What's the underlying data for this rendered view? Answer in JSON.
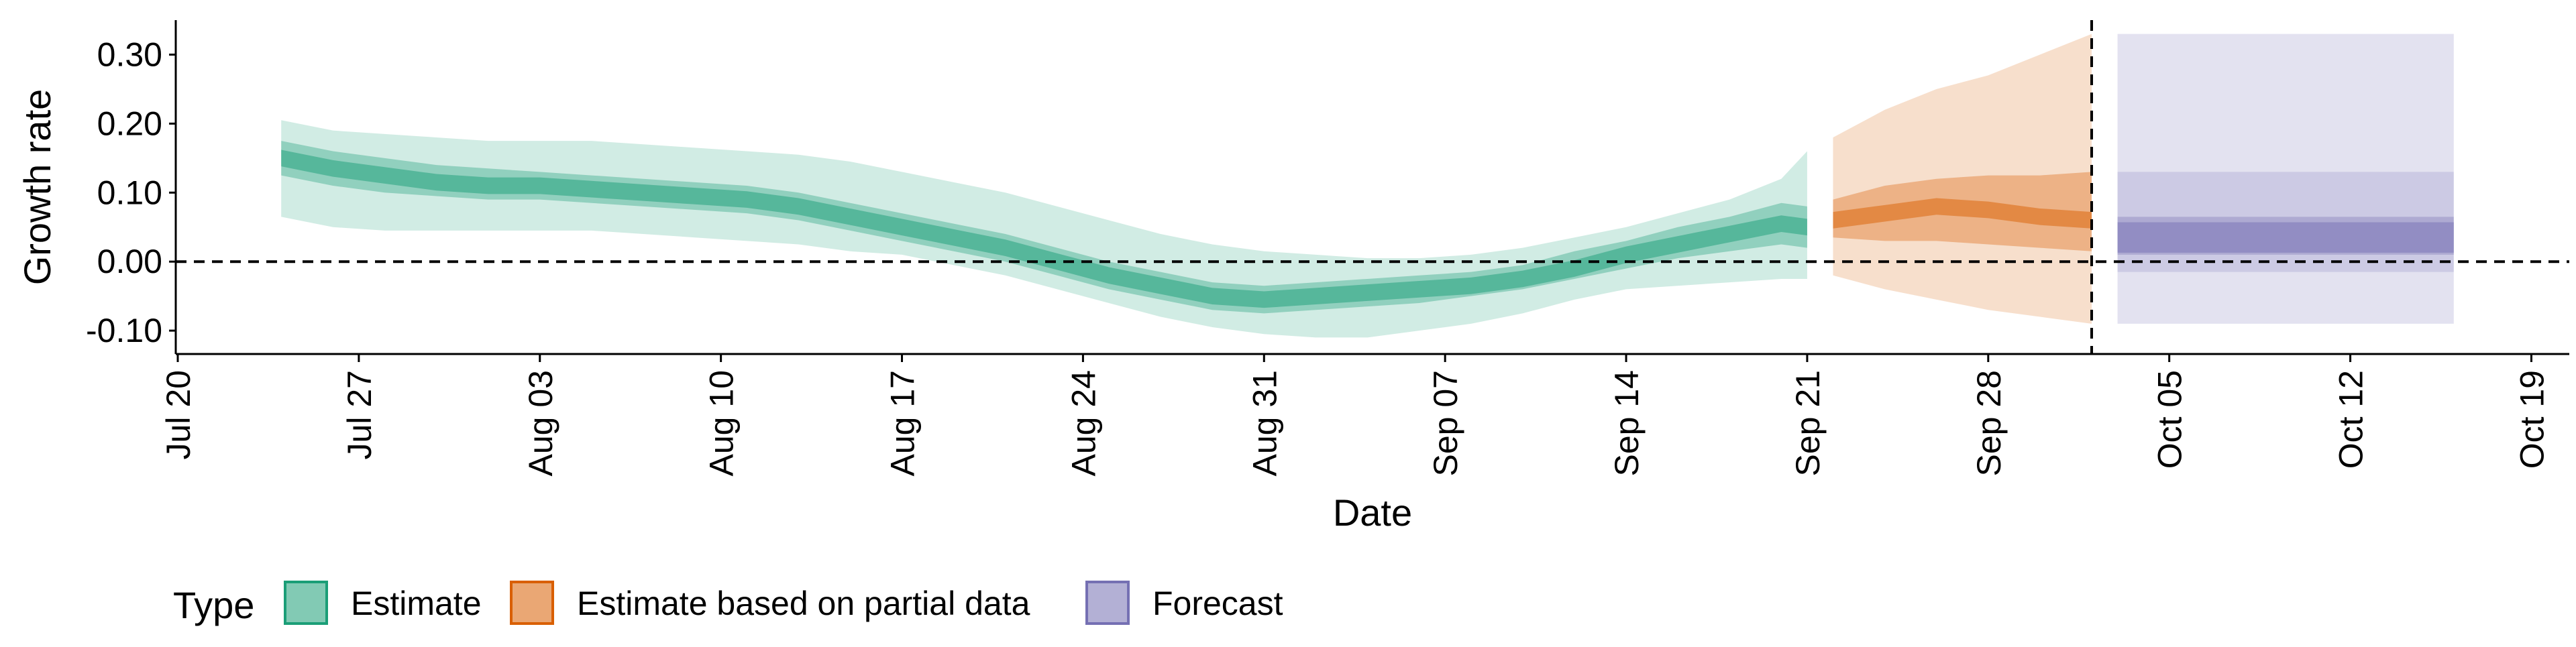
{
  "chart_data": {
    "type": "area",
    "title": "",
    "xlabel": "Date",
    "ylabel": "Growth rate",
    "x_ticks": [
      "Jul 20",
      "Jul 27",
      "Aug 03",
      "Aug 10",
      "Aug 17",
      "Aug 24",
      "Aug 31",
      "Sep 07",
      "Sep 14",
      "Sep 21",
      "Sep 28",
      "Oct 05",
      "Oct 12",
      "Oct 19"
    ],
    "y_ticks": [
      "-0.10",
      "0.00",
      "0.10",
      "0.20",
      "0.30"
    ],
    "xlim": [
      "2020-07-20",
      "2020-10-20"
    ],
    "ylim": [
      -0.13,
      0.35
    ],
    "hline_y": 0,
    "vline_date": "2020-10-02",
    "legend": {
      "title": "Type",
      "position": "bottom-left",
      "items": [
        {
          "key": "estimate",
          "label": "Estimate",
          "color": "#1b9e77"
        },
        {
          "key": "partial",
          "label": "Estimate based on partial data",
          "color": "#d95f02"
        },
        {
          "key": "forecast",
          "label": "Forecast",
          "color": "#7570b3"
        }
      ]
    },
    "series": [
      {
        "type": "estimate",
        "color": "#1b9e77",
        "x": [
          "2020-07-24",
          "2020-07-26",
          "2020-07-28",
          "2020-07-30",
          "2020-08-01",
          "2020-08-03",
          "2020-08-05",
          "2020-08-07",
          "2020-08-09",
          "2020-08-11",
          "2020-08-13",
          "2020-08-15",
          "2020-08-17",
          "2020-08-19",
          "2020-08-21",
          "2020-08-23",
          "2020-08-25",
          "2020-08-27",
          "2020-08-29",
          "2020-08-31",
          "2020-09-02",
          "2020-09-04",
          "2020-09-06",
          "2020-09-08",
          "2020-09-10",
          "2020-09-12",
          "2020-09-14",
          "2020-09-16",
          "2020-09-18",
          "2020-09-20",
          "2020-09-21"
        ],
        "median": [
          0.15,
          0.135,
          0.125,
          0.115,
          0.11,
          0.11,
          0.105,
          0.1,
          0.095,
          0.09,
          0.08,
          0.065,
          0.05,
          0.035,
          0.02,
          0.0,
          -0.02,
          -0.035,
          -0.05,
          -0.055,
          -0.05,
          -0.045,
          -0.04,
          -0.035,
          -0.025,
          -0.01,
          0.01,
          0.025,
          0.04,
          0.055,
          0.05
        ],
        "lower50": [
          0.125,
          0.11,
          0.1,
          0.095,
          0.09,
          0.09,
          0.085,
          0.08,
          0.075,
          0.07,
          0.06,
          0.045,
          0.03,
          0.015,
          0.0,
          -0.02,
          -0.04,
          -0.055,
          -0.07,
          -0.075,
          -0.07,
          -0.065,
          -0.06,
          -0.05,
          -0.04,
          -0.025,
          -0.01,
          0.005,
          0.015,
          0.025,
          0.02
        ],
        "upper50": [
          0.175,
          0.16,
          0.15,
          0.14,
          0.135,
          0.13,
          0.125,
          0.12,
          0.115,
          0.11,
          0.1,
          0.085,
          0.07,
          0.055,
          0.04,
          0.02,
          0.0,
          -0.015,
          -0.03,
          -0.035,
          -0.03,
          -0.025,
          -0.02,
          -0.015,
          -0.005,
          0.015,
          0.03,
          0.05,
          0.065,
          0.085,
          0.08
        ],
        "lower90": [
          0.065,
          0.05,
          0.045,
          0.045,
          0.045,
          0.045,
          0.045,
          0.04,
          0.035,
          0.03,
          0.025,
          0.015,
          0.01,
          -0.005,
          -0.02,
          -0.04,
          -0.06,
          -0.08,
          -0.095,
          -0.105,
          -0.11,
          -0.11,
          -0.1,
          -0.09,
          -0.075,
          -0.055,
          -0.04,
          -0.035,
          -0.03,
          -0.025,
          -0.025
        ],
        "upper90": [
          0.205,
          0.19,
          0.185,
          0.18,
          0.175,
          0.175,
          0.175,
          0.17,
          0.165,
          0.16,
          0.155,
          0.145,
          0.13,
          0.115,
          0.1,
          0.08,
          0.06,
          0.04,
          0.025,
          0.015,
          0.01,
          0.005,
          0.005,
          0.01,
          0.02,
          0.035,
          0.05,
          0.07,
          0.09,
          0.12,
          0.16
        ]
      },
      {
        "type": "partial",
        "color": "#d95f02",
        "x": [
          "2020-09-22",
          "2020-09-24",
          "2020-09-26",
          "2020-09-28",
          "2020-09-30",
          "2020-10-02"
        ],
        "median": [
          0.06,
          0.07,
          0.08,
          0.075,
          0.065,
          0.06
        ],
        "lower50": [
          0.035,
          0.03,
          0.03,
          0.025,
          0.02,
          0.015
        ],
        "upper50": [
          0.09,
          0.11,
          0.12,
          0.125,
          0.125,
          0.13
        ],
        "lower90": [
          -0.02,
          -0.04,
          -0.055,
          -0.07,
          -0.08,
          -0.09
        ],
        "upper90": [
          0.18,
          0.22,
          0.25,
          0.27,
          0.3,
          0.33
        ]
      },
      {
        "type": "forecast",
        "color": "#7570b3",
        "x": [
          "2020-10-03",
          "2020-10-16"
        ],
        "median": [
          0.035,
          0.035
        ],
        "lower50": [
          0.01,
          0.01
        ],
        "upper50": [
          0.065,
          0.065
        ],
        "lower90": [
          -0.015,
          -0.015
        ],
        "upper90": [
          0.13,
          0.13
        ],
        "lower_outer": [
          -0.09,
          -0.09
        ],
        "upper_outer": [
          0.33,
          0.33
        ]
      }
    ]
  }
}
